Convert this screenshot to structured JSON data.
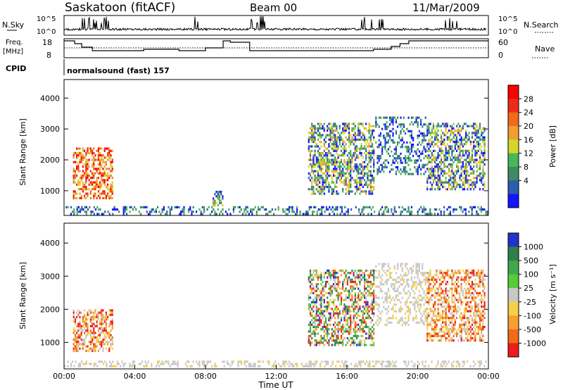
{
  "header": {
    "station": "Saskatoon (fitACF)",
    "beam": "Beam 00",
    "date": "11/Mar/2009"
  },
  "strip": {
    "nsky_label": "N.Sky",
    "nsky_ticks": [
      "10^5",
      "10^0"
    ],
    "nsearch_label": "N.Search",
    "nsearch_ticks": [
      "10^5",
      "10^0"
    ],
    "freq_label_line1": "Freq.",
    "freq_label_line2": "[MHz]",
    "freq_ticks": [
      "18",
      "8"
    ],
    "nave_label": "Nave",
    "nave_ticks": [
      "60",
      "0"
    ],
    "cpid_label": "CPID",
    "cpid_text": "normalsound (fast) 157"
  },
  "chart_data": [
    {
      "type": "heatmap",
      "panel": "power",
      "xlabel": "",
      "ylabel": "Slant Range [km]",
      "x_range_hours": [
        0,
        24
      ],
      "ylim": [
        200,
        4600
      ],
      "yticks": [
        "1000",
        "2000",
        "3000",
        "4000"
      ],
      "colorbar_label": "Power [dB]",
      "colorbar_ticks": [
        "28",
        "24",
        "20",
        "16",
        "12",
        "8",
        "4"
      ],
      "colors": [
        "#1414ff",
        "#2d5cb0",
        "#3f8a64",
        "#48b65a",
        "#d6d62a",
        "#f0a030",
        "#f06a1a",
        "#ee2b1a",
        "#ff0000"
      ],
      "regions": [
        {
          "t": [
            0.5,
            2.8
          ],
          "r": [
            700,
            2400
          ],
          "level": "high"
        },
        {
          "t": [
            0.0,
            24.0
          ],
          "r": [
            200,
            500
          ],
          "level": "low"
        },
        {
          "t": [
            8.4,
            9.0
          ],
          "r": [
            500,
            1000
          ],
          "level": "mid"
        },
        {
          "t": [
            13.8,
            17.6
          ],
          "r": [
            900,
            3200
          ],
          "level": "mid"
        },
        {
          "t": [
            17.6,
            20.5
          ],
          "r": [
            1500,
            3400
          ],
          "level": "low"
        },
        {
          "t": [
            20.5,
            23.8
          ],
          "r": [
            1000,
            3200
          ],
          "level": "mid"
        }
      ]
    },
    {
      "type": "heatmap",
      "panel": "velocity",
      "xlabel": "Time UT",
      "ylabel": "Slant Range [km]",
      "x_range_hours": [
        0,
        24
      ],
      "ylim": [
        200,
        4600
      ],
      "yticks": [
        "1000",
        "2000",
        "3000",
        "4000"
      ],
      "xticks": [
        "00:00",
        "04:00",
        "08:00",
        "12:00",
        "16:00",
        "20:00",
        "00:00"
      ],
      "colorbar_label": "Velocity [m s⁻¹]",
      "colorbar_ticks": [
        "1000",
        "500",
        "100",
        "25",
        "-25",
        "-100",
        "-500",
        "-1000"
      ],
      "colors": [
        "#2233cc",
        "#2f7f4a",
        "#3fa84e",
        "#55cc3a",
        "#c8c8c8",
        "#f5d04a",
        "#f5a030",
        "#f06a1a",
        "#ee1c1c"
      ],
      "regions": [
        {
          "t": [
            0.5,
            2.8
          ],
          "r": [
            700,
            2000
          ],
          "level": "negative"
        },
        {
          "t": [
            0.0,
            24.0
          ],
          "r": [
            200,
            450
          ],
          "level": "ground"
        },
        {
          "t": [
            13.8,
            17.6
          ],
          "r": [
            900,
            3200
          ],
          "level": "mixed"
        },
        {
          "t": [
            17.6,
            20.5
          ],
          "r": [
            1500,
            3400
          ],
          "level": "ground"
        },
        {
          "t": [
            20.5,
            23.8
          ],
          "r": [
            1000,
            3200
          ],
          "level": "negative"
        }
      ]
    }
  ]
}
